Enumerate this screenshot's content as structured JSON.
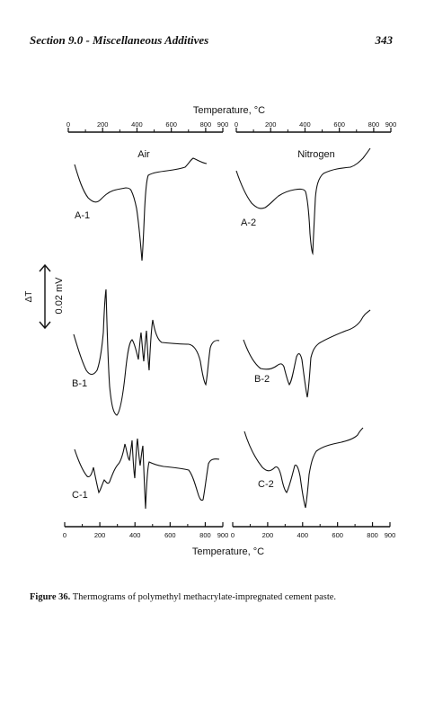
{
  "header": {
    "section_title": "Section 9.0 - Miscellaneous Additives",
    "page_number": "343"
  },
  "figure": {
    "top_axis_title": "Temperature, °C",
    "bottom_axis_title": "Temperature, °C",
    "panel_titles": [
      "Air",
      "Nitrogen"
    ],
    "scale_bar_label": "0.02 mV",
    "scale_bar_symbol": "ΔT",
    "tick_labels": [
      "0",
      "200",
      "400",
      "600",
      "800",
      "900"
    ],
    "curve_labels": {
      "A1": "A-1",
      "A2": "A-2",
      "B1": "B-1",
      "B2": "B-2",
      "C1": "C-1",
      "C2": "C-2"
    }
  },
  "caption": {
    "label": "Figure 36.",
    "text": " Thermograms of polymethyl methacrylate-impregnated cement paste."
  }
}
